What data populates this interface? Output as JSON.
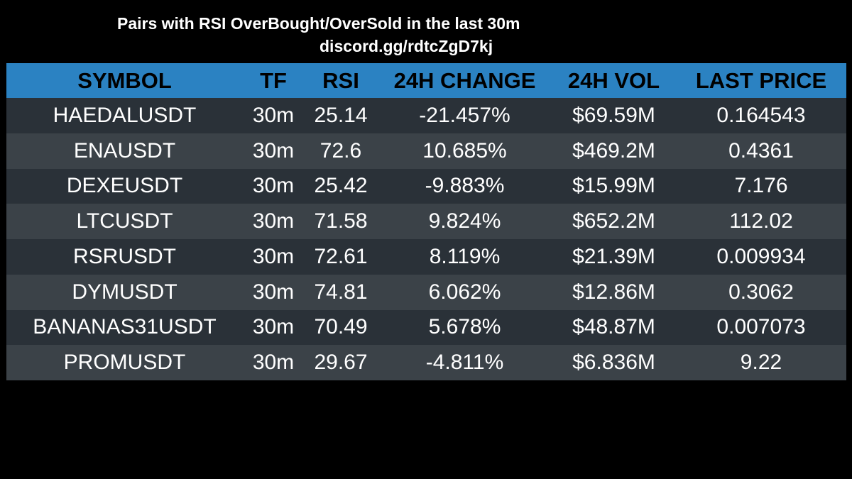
{
  "title": "Pairs with RSI OverBought/OverSold in the last 30m",
  "subtitle": "discord.gg/rdtcZgD7kj",
  "colors": {
    "background": "#000000",
    "header_bg": "#2b82c2",
    "row_dark": "#2a3138",
    "row_light": "#3b4248",
    "text": "#ffffff",
    "header_text": "#000000"
  },
  "table": {
    "headers": {
      "symbol": "SYMBOL",
      "tf": "TF",
      "rsi": "RSI",
      "change": "24H CHANGE",
      "vol": "24H VOL",
      "price": "LAST PRICE"
    },
    "rows": [
      {
        "symbol": "HAEDALUSDT",
        "tf": "30m",
        "rsi": "25.14",
        "change": "-21.457%",
        "vol": "$69.59M",
        "price": "0.164543"
      },
      {
        "symbol": "ENAUSDT",
        "tf": "30m",
        "rsi": "72.6",
        "change": "10.685%",
        "vol": "$469.2M",
        "price": "0.4361"
      },
      {
        "symbol": "DEXEUSDT",
        "tf": "30m",
        "rsi": "25.42",
        "change": "-9.883%",
        "vol": "$15.99M",
        "price": "7.176"
      },
      {
        "symbol": "LTCUSDT",
        "tf": "30m",
        "rsi": "71.58",
        "change": "9.824%",
        "vol": "$652.2M",
        "price": "112.02"
      },
      {
        "symbol": "RSRUSDT",
        "tf": "30m",
        "rsi": "72.61",
        "change": "8.119%",
        "vol": "$21.39M",
        "price": "0.009934"
      },
      {
        "symbol": "DYMUSDT",
        "tf": "30m",
        "rsi": "74.81",
        "change": "6.062%",
        "vol": "$12.86M",
        "price": "0.3062"
      },
      {
        "symbol": "BANANAS31USDT",
        "tf": "30m",
        "rsi": "70.49",
        "change": "5.678%",
        "vol": "$48.87M",
        "price": "0.007073"
      },
      {
        "symbol": "PROMUSDT",
        "tf": "30m",
        "rsi": "29.67",
        "change": "-4.811%",
        "vol": "$6.836M",
        "price": "9.22"
      }
    ]
  }
}
